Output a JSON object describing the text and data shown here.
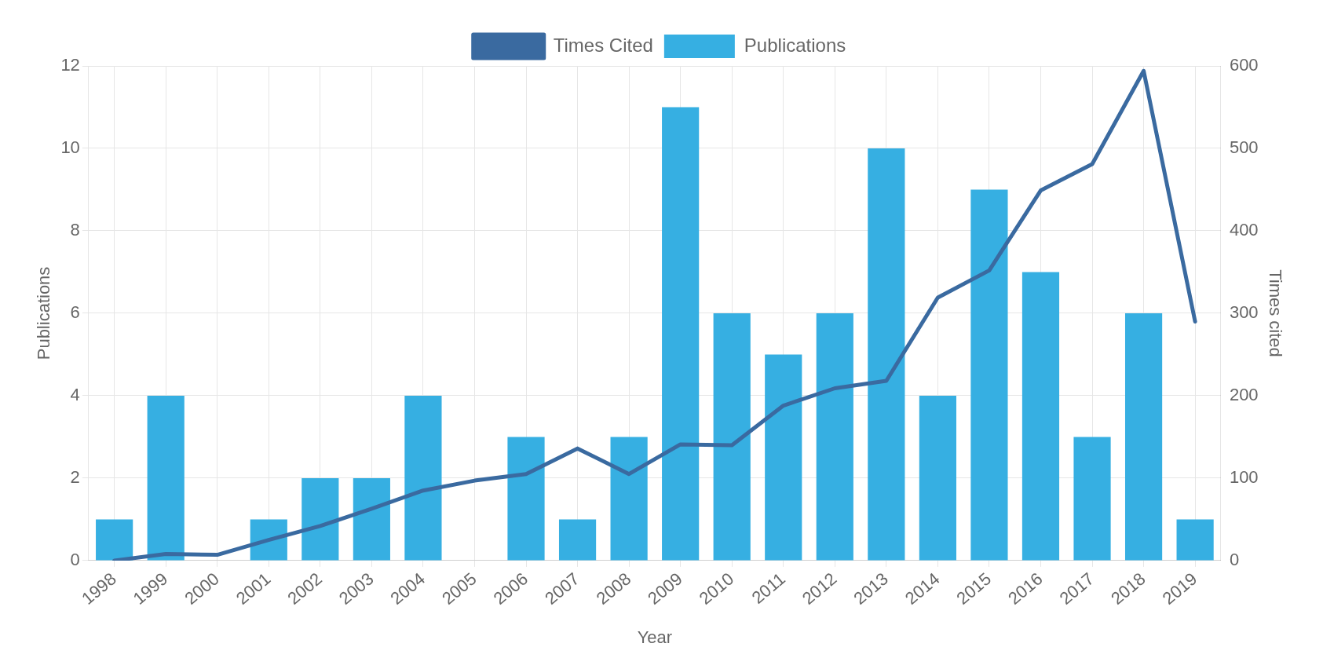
{
  "chart_data": {
    "type": "bar",
    "xlabel": "Year",
    "ylabel": "Publications",
    "y2label": "Times cited",
    "categories": [
      "1998",
      "1999",
      "2000",
      "2001",
      "2002",
      "2003",
      "2004",
      "2005",
      "2006",
      "2007",
      "2008",
      "2009",
      "2010",
      "2011",
      "2012",
      "2013",
      "2014",
      "2015",
      "2016",
      "2017",
      "2018",
      "2019"
    ],
    "series": [
      {
        "name": "Times Cited",
        "type": "line",
        "axis": "y2",
        "color": "#3a6aa0",
        "values": [
          0,
          8,
          7,
          25,
          42,
          63,
          85,
          97,
          105,
          136,
          105,
          141,
          140,
          188,
          209,
          218,
          319,
          352,
          449,
          481,
          594,
          290
        ]
      },
      {
        "name": "Publications",
        "color": "#36afe2",
        "values": [
          1,
          4,
          0,
          1,
          2,
          2,
          4,
          0,
          3,
          1,
          3,
          11,
          6,
          5,
          6,
          10,
          4,
          9,
          7,
          3,
          6,
          1
        ]
      }
    ],
    "ylim": [
      0,
      12
    ],
    "yticks": [
      0,
      2,
      4,
      6,
      8,
      10,
      12
    ],
    "y2lim": [
      0,
      600
    ],
    "y2ticks": [
      0,
      100,
      200,
      300,
      400,
      500,
      600
    ],
    "grid": true,
    "legend": "top",
    "marker": "none"
  }
}
